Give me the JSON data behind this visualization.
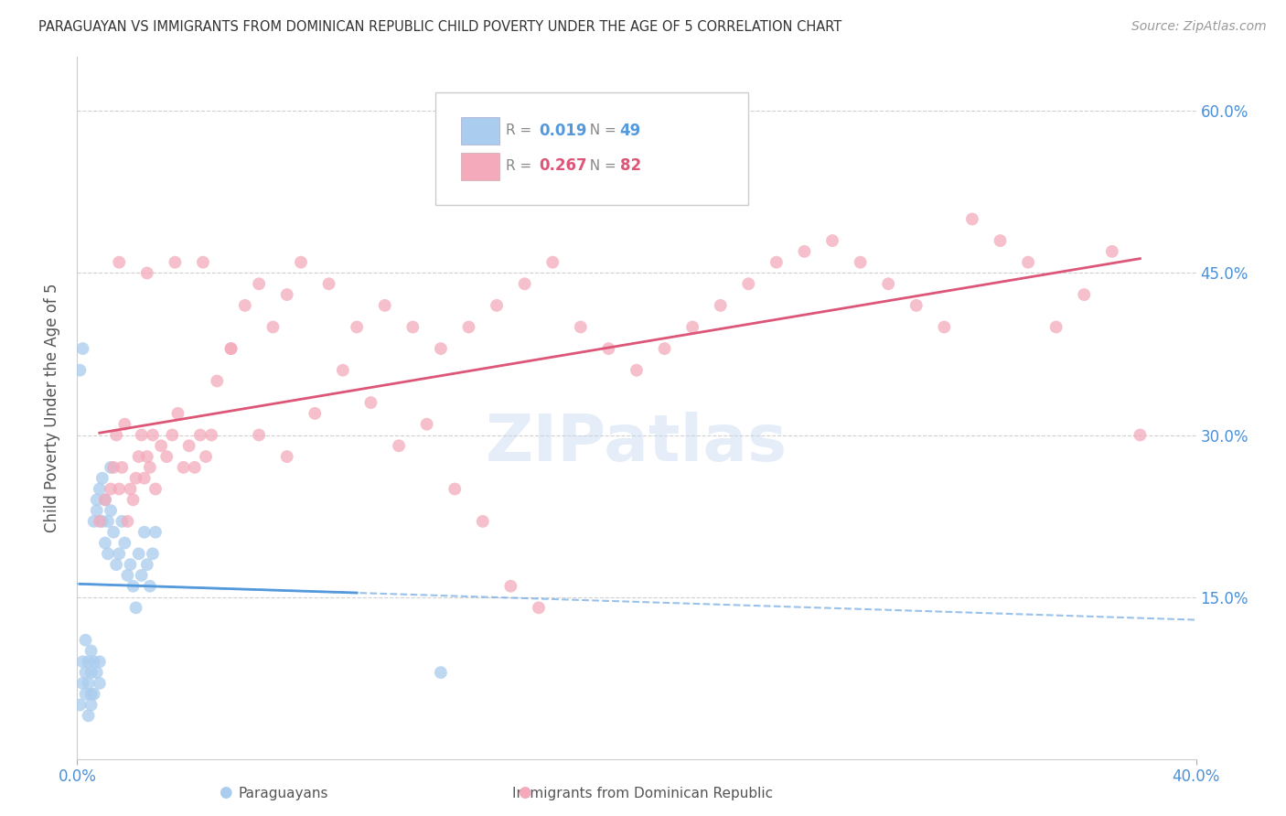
{
  "title": "PARAGUAYAN VS IMMIGRANTS FROM DOMINICAN REPUBLIC CHILD POVERTY UNDER THE AGE OF 5 CORRELATION CHART",
  "source": "Source: ZipAtlas.com",
  "ylabel": "Child Poverty Under the Age of 5",
  "xlim": [
    0.0,
    0.4
  ],
  "ylim": [
    0.0,
    0.65
  ],
  "y_ticks_right": [
    0.15,
    0.3,
    0.45,
    0.6
  ],
  "y_tick_labels_right": [
    "15.0%",
    "30.0%",
    "45.0%",
    "60.0%"
  ],
  "grid_color": "#d0d0d0",
  "background_color": "#ffffff",
  "paraguayan_color": "#aaccee",
  "dominican_color": "#f4aabb",
  "paraguayan_line_color": "#5599dd",
  "dominican_line_color": "#dd5577",
  "legend_R1": "0.019",
  "legend_N1": "49",
  "legend_R2": "0.267",
  "legend_N2": "82",
  "watermark": "ZIPatlas",
  "paraguayan_x": [
    0.001,
    0.002,
    0.002,
    0.003,
    0.003,
    0.003,
    0.004,
    0.004,
    0.004,
    0.005,
    0.005,
    0.005,
    0.005,
    0.006,
    0.006,
    0.006,
    0.007,
    0.007,
    0.007,
    0.008,
    0.008,
    0.008,
    0.009,
    0.009,
    0.01,
    0.01,
    0.011,
    0.011,
    0.012,
    0.012,
    0.013,
    0.014,
    0.015,
    0.016,
    0.017,
    0.018,
    0.019,
    0.02,
    0.021,
    0.022,
    0.023,
    0.024,
    0.025,
    0.026,
    0.027,
    0.028,
    0.13,
    0.001,
    0.002
  ],
  "paraguayan_y": [
    0.05,
    0.07,
    0.09,
    0.06,
    0.08,
    0.11,
    0.04,
    0.07,
    0.09,
    0.05,
    0.06,
    0.08,
    0.1,
    0.06,
    0.09,
    0.22,
    0.24,
    0.08,
    0.23,
    0.07,
    0.09,
    0.25,
    0.22,
    0.26,
    0.2,
    0.24,
    0.22,
    0.19,
    0.23,
    0.27,
    0.21,
    0.18,
    0.19,
    0.22,
    0.2,
    0.17,
    0.18,
    0.16,
    0.14,
    0.19,
    0.17,
    0.21,
    0.18,
    0.16,
    0.19,
    0.21,
    0.08,
    0.36,
    0.38
  ],
  "dominican_x": [
    0.008,
    0.01,
    0.012,
    0.013,
    0.014,
    0.015,
    0.016,
    0.017,
    0.018,
    0.019,
    0.02,
    0.021,
    0.022,
    0.023,
    0.024,
    0.025,
    0.026,
    0.027,
    0.028,
    0.03,
    0.032,
    0.034,
    0.036,
    0.038,
    0.04,
    0.042,
    0.044,
    0.046,
    0.048,
    0.05,
    0.055,
    0.06,
    0.065,
    0.07,
    0.075,
    0.08,
    0.09,
    0.1,
    0.11,
    0.12,
    0.13,
    0.14,
    0.15,
    0.16,
    0.17,
    0.18,
    0.19,
    0.2,
    0.21,
    0.22,
    0.23,
    0.24,
    0.25,
    0.26,
    0.27,
    0.28,
    0.29,
    0.3,
    0.31,
    0.32,
    0.33,
    0.34,
    0.35,
    0.36,
    0.37,
    0.38,
    0.015,
    0.025,
    0.035,
    0.045,
    0.055,
    0.065,
    0.075,
    0.085,
    0.095,
    0.105,
    0.115,
    0.125,
    0.135,
    0.145,
    0.155,
    0.165
  ],
  "dominican_y": [
    0.22,
    0.24,
    0.25,
    0.27,
    0.3,
    0.25,
    0.27,
    0.31,
    0.22,
    0.25,
    0.24,
    0.26,
    0.28,
    0.3,
    0.26,
    0.28,
    0.27,
    0.3,
    0.25,
    0.29,
    0.28,
    0.3,
    0.32,
    0.27,
    0.29,
    0.27,
    0.3,
    0.28,
    0.3,
    0.35,
    0.38,
    0.42,
    0.44,
    0.4,
    0.43,
    0.46,
    0.44,
    0.4,
    0.42,
    0.4,
    0.38,
    0.4,
    0.42,
    0.44,
    0.46,
    0.4,
    0.38,
    0.36,
    0.38,
    0.4,
    0.42,
    0.44,
    0.46,
    0.47,
    0.48,
    0.46,
    0.44,
    0.42,
    0.4,
    0.5,
    0.48,
    0.46,
    0.4,
    0.43,
    0.47,
    0.3,
    0.46,
    0.45,
    0.46,
    0.46,
    0.38,
    0.3,
    0.28,
    0.32,
    0.36,
    0.33,
    0.29,
    0.31,
    0.25,
    0.22,
    0.16,
    0.14
  ]
}
